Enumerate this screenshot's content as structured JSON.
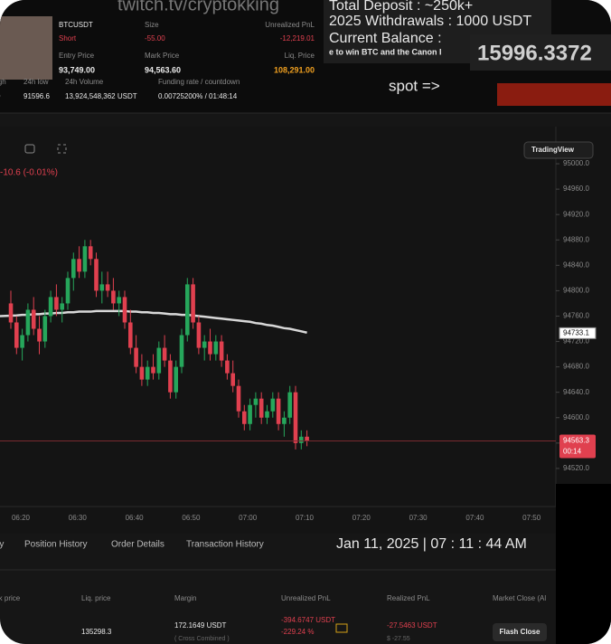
{
  "stream": {
    "watermark": "twitch.tv/cryptokking",
    "overlay": {
      "deposit": "Total Deposit : ~250k+",
      "withdrawals": "2025 Withdrawals : 1000 USDT",
      "balance_label": "Current Balance :",
      "ticker": "e to win BTC and the Canon I",
      "balance": "15996.3372",
      "spot": "spot =>"
    }
  },
  "position": {
    "symbol": "BTCUSDT",
    "side": "Short",
    "size_label": "Size",
    "size": "-55.00",
    "upnl_label": "Unrealized PnL",
    "upnl": "-12,219.01",
    "entry_label": "Entry Price",
    "entry": "93,749.00",
    "mark_label": "Mark Price",
    "mark": "94,563.60",
    "liq_label": "Liq. Price",
    "liq": "108,291.00"
  },
  "stats": {
    "labels": [
      "igh",
      "24h low",
      "24h Volume",
      "Funding rate / countdown"
    ],
    "values": [
      "0",
      "91596.6",
      "13,924,548,362 USDT",
      "0.00725200% / 01:48:14"
    ]
  },
  "chart": {
    "change": "-10.6 (-0.01%)",
    "provider": "TradingView",
    "ylim": [
      94460,
      95030
    ],
    "yticks": [
      {
        "value": 95000,
        "label": "95000.0"
      },
      {
        "value": 94960,
        "label": "94960.0"
      },
      {
        "value": 94920,
        "label": "94920.0"
      },
      {
        "value": 94880,
        "label": "94880.0"
      },
      {
        "value": 94840,
        "label": "94840.0"
      },
      {
        "value": 94800,
        "label": "94800.0"
      },
      {
        "value": 94760,
        "label": "94760.0"
      },
      {
        "value": 94720,
        "label": "94720.0"
      },
      {
        "value": 94680,
        "label": "94680.0"
      },
      {
        "value": 94640,
        "label": "94640.0"
      },
      {
        "value": 94600,
        "label": "94600.0"
      },
      {
        "value": 94560,
        "label": "94560.0"
      },
      {
        "value": 94520,
        "label": "94520.0"
      }
    ],
    "xticks": [
      "06:20",
      "06:30",
      "06:40",
      "06:50",
      "07:00",
      "07:10",
      "07:20",
      "07:30",
      "07:40",
      "07:50"
    ],
    "candles": [
      [
        94780,
        94800,
        94740,
        94750
      ],
      [
        94750,
        94760,
        94700,
        94710
      ],
      [
        94710,
        94740,
        94690,
        94730
      ],
      [
        94730,
        94780,
        94720,
        94770
      ],
      [
        94770,
        94790,
        94730,
        94740
      ],
      [
        94740,
        94760,
        94700,
        94720
      ],
      [
        94720,
        94770,
        94710,
        94760
      ],
      [
        94760,
        94800,
        94750,
        94790
      ],
      [
        94790,
        94810,
        94760,
        94770
      ],
      [
        94770,
        94790,
        94750,
        94780
      ],
      [
        94780,
        94830,
        94770,
        94820
      ],
      [
        94820,
        94860,
        94800,
        94850
      ],
      [
        94850,
        94870,
        94820,
        94830
      ],
      [
        94830,
        94880,
        94820,
        94870
      ],
      [
        94870,
        94880,
        94840,
        94850
      ],
      [
        94850,
        94860,
        94790,
        94800
      ],
      [
        94800,
        94830,
        94780,
        94810
      ],
      [
        94810,
        94830,
        94790,
        94800
      ],
      [
        94800,
        94820,
        94770,
        94780
      ],
      [
        94780,
        94800,
        94760,
        94790
      ],
      [
        94790,
        94800,
        94740,
        94750
      ],
      [
        94750,
        94770,
        94700,
        94710
      ],
      [
        94710,
        94730,
        94670,
        94680
      ],
      [
        94680,
        94700,
        94650,
        94660
      ],
      [
        94660,
        94690,
        94650,
        94680
      ],
      [
        94680,
        94700,
        94660,
        94670
      ],
      [
        94670,
        94720,
        94660,
        94710
      ],
      [
        94710,
        94730,
        94680,
        94690
      ],
      [
        94690,
        94700,
        94630,
        94640
      ],
      [
        94640,
        94690,
        94630,
        94680
      ],
      [
        94680,
        94740,
        94670,
        94730
      ],
      [
        94730,
        94820,
        94720,
        94810
      ],
      [
        94810,
        94820,
        94740,
        94750
      ],
      [
        94750,
        94760,
        94700,
        94710
      ],
      [
        94710,
        94730,
        94690,
        94720
      ],
      [
        94720,
        94740,
        94690,
        94700
      ],
      [
        94700,
        94730,
        94690,
        94720
      ],
      [
        94720,
        94730,
        94680,
        94690
      ],
      [
        94690,
        94700,
        94660,
        94670
      ],
      [
        94670,
        94690,
        94640,
        94650
      ],
      [
        94650,
        94660,
        94600,
        94610
      ],
      [
        94610,
        94620,
        94580,
        94590
      ],
      [
        94590,
        94630,
        94580,
        94620
      ],
      [
        94620,
        94640,
        94600,
        94630
      ],
      [
        94630,
        94640,
        94590,
        94600
      ],
      [
        94600,
        94620,
        94590,
        94610
      ],
      [
        94610,
        94640,
        94600,
        94630
      ],
      [
        94630,
        94640,
        94580,
        94590
      ],
      [
        94590,
        94610,
        94570,
        94600
      ],
      [
        94600,
        94650,
        94590,
        94640
      ],
      [
        94640,
        94650,
        94550,
        94560
      ],
      [
        94560,
        94580,
        94550,
        94570
      ],
      [
        94570,
        94580,
        94555,
        94563
      ]
    ],
    "moving_average": [
      94760,
      94761,
      94762,
      94762,
      94763,
      94763,
      94764,
      94764,
      94765,
      94765,
      94766,
      94766,
      94767,
      94767,
      94767,
      94768,
      94768,
      94768,
      94768,
      94768,
      94768,
      94767,
      94767,
      94766,
      94766,
      94765,
      94765,
      94764,
      94763,
      94763,
      94762,
      94762,
      94761,
      94760,
      94759,
      94758,
      94757,
      94756,
      94755,
      94754,
      94753,
      94752,
      94751,
      94749,
      94748,
      94746,
      94745,
      94743,
      94741,
      94740,
      94738,
      94736,
      94734
    ],
    "ma_price": 94733.1,
    "last_price": 94563.3,
    "countdown": "00:14"
  },
  "tabs": [
    "ry",
    "Position History",
    "Order Details",
    "Transaction History"
  ],
  "datetime": "Jan 11, 2025 | 07 : 11 : 44 AM",
  "table": {
    "headers": [
      "rk price",
      "Liq. price",
      "Margin",
      "Unrealized PnL",
      "Realized PnL",
      "Market Close (Al"
    ],
    "row": {
      "liq": "135298.3",
      "margin": "172.1649 USDT",
      "margin_mode": "( Cross Combined )",
      "upnl": "-394.6747 USDT",
      "upnl_pct": "-229.24 %",
      "realized": "-27.5463 USDT",
      "realized_usd": "$ -27.55",
      "action": "Flash Close"
    }
  }
}
